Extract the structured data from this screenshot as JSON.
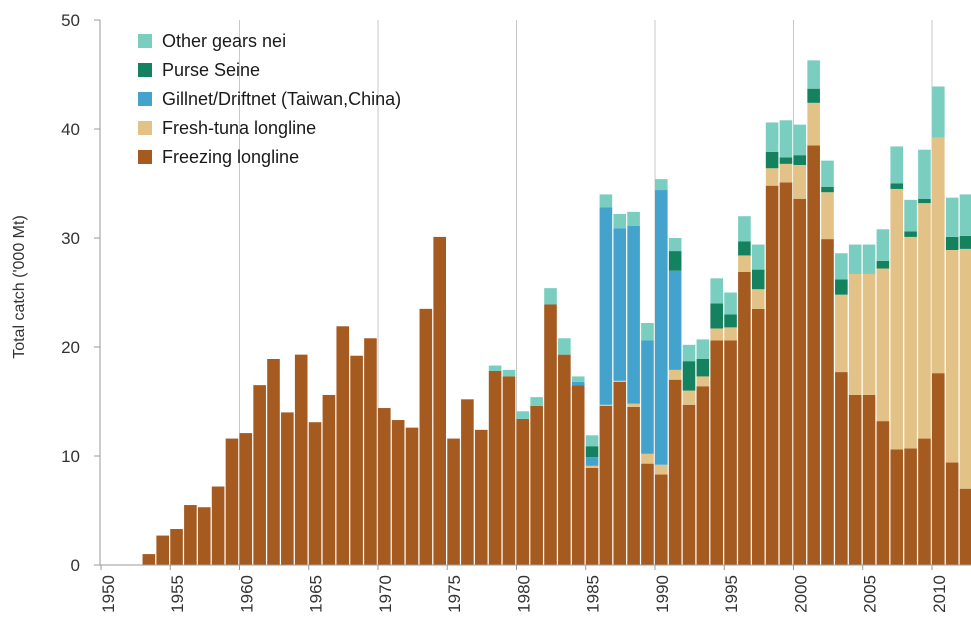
{
  "chart_data": {
    "type": "bar",
    "stacked": true,
    "title": "",
    "xlabel": "",
    "ylabel": "Total catch ('000 Mt)",
    "ylim": [
      0,
      50
    ],
    "yticks": [
      0,
      10,
      20,
      30,
      40,
      50
    ],
    "xticks": [
      "1950",
      "1955",
      "1960",
      "1965",
      "1970",
      "1975",
      "1980",
      "1985",
      "1990",
      "1995",
      "2000",
      "2005",
      "2010"
    ],
    "vertical_gridlines_at": [
      1960,
      1970,
      1980,
      1990,
      2000,
      2010
    ],
    "legend_position": "top-left",
    "categories": [
      "1950",
      "1951",
      "1952",
      "1953",
      "1954",
      "1955",
      "1956",
      "1957",
      "1958",
      "1959",
      "1960",
      "1961",
      "1962",
      "1963",
      "1964",
      "1965",
      "1966",
      "1967",
      "1968",
      "1969",
      "1970",
      "1971",
      "1972",
      "1973",
      "1974",
      "1975",
      "1976",
      "1977",
      "1978",
      "1979",
      "1980",
      "1981",
      "1982",
      "1983",
      "1984",
      "1985",
      "1986",
      "1987",
      "1988",
      "1989",
      "1990",
      "1991",
      "1992",
      "1993",
      "1994",
      "1995",
      "1996",
      "1997",
      "1998",
      "1999",
      "2000",
      "2001",
      "2002",
      "2003",
      "2004",
      "2005",
      "2006",
      "2007",
      "2008",
      "2009",
      "2010",
      "2011",
      "2012"
    ],
    "series": [
      {
        "name": "Freezing longline",
        "color": "#A55A20",
        "values": [
          0,
          0,
          0,
          1.0,
          2.7,
          3.3,
          5.5,
          5.3,
          7.2,
          11.6,
          12.1,
          16.5,
          18.9,
          14.0,
          19.3,
          13.1,
          15.6,
          21.9,
          19.2,
          20.8,
          14.4,
          13.3,
          12.6,
          23.5,
          30.1,
          11.6,
          15.2,
          12.4,
          17.8,
          17.3,
          13.4,
          14.6,
          23.9,
          19.3,
          16.5,
          8.9,
          14.6,
          16.8,
          14.5,
          9.3,
          8.3,
          17.0,
          14.7,
          16.4,
          20.6,
          20.6,
          26.9,
          23.5,
          34.8,
          35.1,
          33.6,
          38.5,
          29.9,
          17.7,
          15.6,
          15.6,
          13.2,
          10.6,
          10.7,
          11.6,
          17.6,
          9.4,
          7.0
        ]
      },
      {
        "name": "Fresh-tuna longline",
        "color": "#E3C287",
        "values": [
          0,
          0,
          0,
          0,
          0,
          0,
          0,
          0,
          0,
          0,
          0,
          0,
          0,
          0,
          0,
          0,
          0,
          0,
          0,
          0,
          0,
          0,
          0,
          0,
          0,
          0,
          0,
          0,
          0,
          0,
          0,
          0,
          0,
          0,
          0,
          0.2,
          0.1,
          0.1,
          0.3,
          0.9,
          0.9,
          0.9,
          1.3,
          0.9,
          1.1,
          1.2,
          1.5,
          1.8,
          1.6,
          1.7,
          3.1,
          3.9,
          4.3,
          7.1,
          11.1,
          11.1,
          14.0,
          23.9,
          19.4,
          21.6,
          21.6,
          19.5,
          22.0
        ]
      },
      {
        "name": "Gillnet/Driftnet (Taiwan,China)",
        "color": "#43A3CC",
        "values": [
          0,
          0,
          0,
          0,
          0,
          0,
          0,
          0,
          0,
          0,
          0,
          0,
          0,
          0,
          0,
          0,
          0,
          0,
          0,
          0,
          0,
          0,
          0,
          0,
          0,
          0,
          0,
          0,
          0,
          0,
          0,
          0,
          0,
          0,
          0.3,
          0.8,
          18.1,
          14.0,
          16.3,
          10.4,
          25.2,
          9.1,
          0,
          0,
          0,
          0,
          0,
          0,
          0,
          0,
          0,
          0,
          0,
          0,
          0,
          0,
          0,
          0,
          0,
          0,
          0,
          0,
          0
        ]
      },
      {
        "name": "Purse Seine",
        "color": "#14825F",
        "values": [
          0,
          0,
          0,
          0,
          0,
          0,
          0,
          0,
          0,
          0,
          0,
          0,
          0,
          0,
          0,
          0,
          0,
          0,
          0,
          0,
          0,
          0,
          0,
          0,
          0,
          0,
          0,
          0,
          0,
          0,
          0,
          0,
          0,
          0,
          0,
          1.0,
          0,
          0,
          0,
          0,
          0,
          1.8,
          2.7,
          1.6,
          2.3,
          1.2,
          1.3,
          1.8,
          1.5,
          0.6,
          0.9,
          1.3,
          0.5,
          1.4,
          0,
          0,
          0.7,
          0.5,
          0.5,
          0.4,
          0,
          1.2,
          1.2
        ]
      },
      {
        "name": "Other gears nei",
        "color": "#79CEC0",
        "values": [
          0,
          0,
          0,
          0,
          0,
          0,
          0,
          0,
          0,
          0,
          0,
          0,
          0,
          0,
          0,
          0,
          0,
          0,
          0,
          0,
          0,
          0,
          0,
          0,
          0,
          0,
          0,
          0,
          0.5,
          0.6,
          0.7,
          0.8,
          1.5,
          1.5,
          0.5,
          1.0,
          1.2,
          1.3,
          1.3,
          1.6,
          1.0,
          1.2,
          1.5,
          1.8,
          2.3,
          2.0,
          2.3,
          2.3,
          2.7,
          3.4,
          2.8,
          2.6,
          2.4,
          2.4,
          2.7,
          2.7,
          2.9,
          3.4,
          2.9,
          4.5,
          4.7,
          3.6,
          3.8
        ]
      }
    ]
  }
}
